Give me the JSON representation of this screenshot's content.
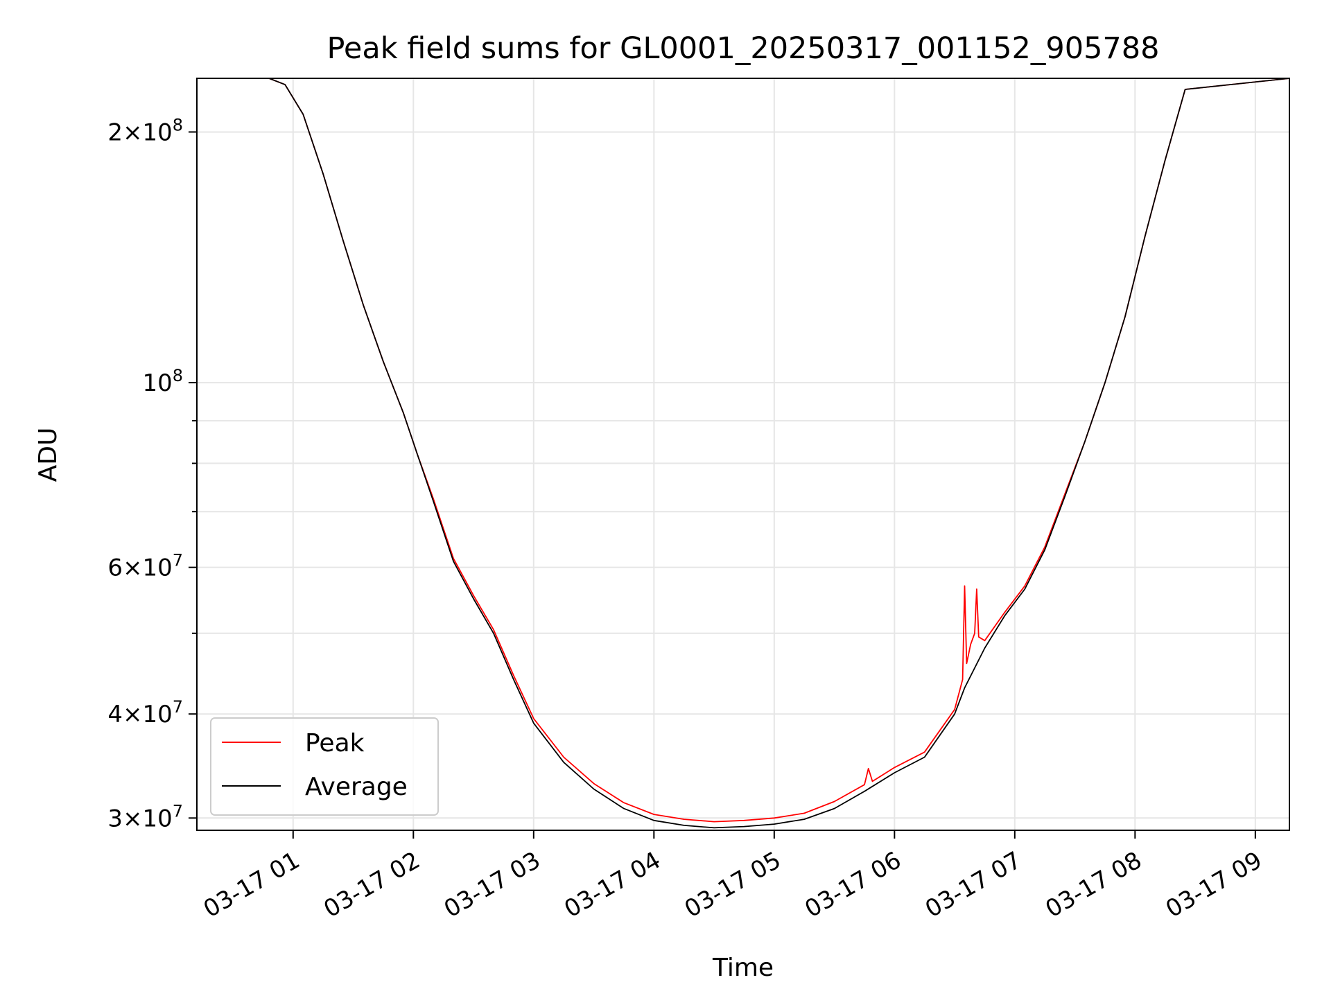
{
  "chart_data": {
    "type": "line",
    "title": "Peak field sums for GL0001_20250317_001152_905788",
    "xlabel": "Time",
    "ylabel": "ADU",
    "x_range": [
      "2025-03-17T00:12:00",
      "2025-03-17T09:17:00"
    ],
    "y_scale": "log",
    "ylim": [
      29000000,
      232000000
    ],
    "grid": true,
    "legend_position": "lower-left",
    "x_ticks": [
      {
        "time": "2025-03-17T01:00:00",
        "label": "03-17 01"
      },
      {
        "time": "2025-03-17T02:00:00",
        "label": "03-17 02"
      },
      {
        "time": "2025-03-17T03:00:00",
        "label": "03-17 03"
      },
      {
        "time": "2025-03-17T04:00:00",
        "label": "03-17 04"
      },
      {
        "time": "2025-03-17T05:00:00",
        "label": "03-17 05"
      },
      {
        "time": "2025-03-17T06:00:00",
        "label": "03-17 06"
      },
      {
        "time": "2025-03-17T07:00:00",
        "label": "03-17 07"
      },
      {
        "time": "2025-03-17T08:00:00",
        "label": "03-17 08"
      },
      {
        "time": "2025-03-17T09:00:00",
        "label": "03-17 09"
      }
    ],
    "y_ticks_major": [
      {
        "value": 30000000,
        "mantissa": "3",
        "exponent": "7"
      },
      {
        "value": 40000000,
        "mantissa": "4",
        "exponent": "7"
      },
      {
        "value": 60000000,
        "mantissa": "6",
        "exponent": "7"
      },
      {
        "value": 100000000,
        "mantissa": "",
        "exponent": "8"
      },
      {
        "value": 200000000,
        "mantissa": "2",
        "exponent": "8"
      }
    ],
    "y_ticks_minor": [
      50000000,
      70000000,
      80000000,
      90000000
    ],
    "series": [
      {
        "name": "Average",
        "color": "#000000",
        "x": [
          "2025-03-17T00:12:00",
          "2025-03-17T00:48:00",
          "2025-03-17T00:56:00",
          "2025-03-17T01:05:00",
          "2025-03-17T01:15:00",
          "2025-03-17T01:25:00",
          "2025-03-17T01:35:00",
          "2025-03-17T01:45:00",
          "2025-03-17T01:55:00",
          "2025-03-17T02:02:00",
          "2025-03-17T02:10:00",
          "2025-03-17T02:20:00",
          "2025-03-17T02:30:00",
          "2025-03-17T02:40:00",
          "2025-03-17T02:50:00",
          "2025-03-17T03:00:00",
          "2025-03-17T03:15:00",
          "2025-03-17T03:30:00",
          "2025-03-17T03:45:00",
          "2025-03-17T04:00:00",
          "2025-03-17T04:15:00",
          "2025-03-17T04:30:00",
          "2025-03-17T04:45:00",
          "2025-03-17T05:00:00",
          "2025-03-17T05:15:00",
          "2025-03-17T05:30:00",
          "2025-03-17T05:45:00",
          "2025-03-17T06:00:00",
          "2025-03-17T06:15:00",
          "2025-03-17T06:30:00",
          "2025-03-17T06:35:00",
          "2025-03-17T06:45:00",
          "2025-03-17T06:55:00",
          "2025-03-17T07:05:00",
          "2025-03-17T07:15:00",
          "2025-03-17T07:25:00",
          "2025-03-17T07:35:00",
          "2025-03-17T07:45:00",
          "2025-03-17T07:55:00",
          "2025-03-17T08:05:00",
          "2025-03-17T08:15:00",
          "2025-03-17T08:25:00",
          "2025-03-17T09:17:00"
        ],
        "y": [
          232000000,
          232000000,
          228000000,
          210000000,
          178000000,
          148000000,
          124000000,
          106000000,
          92000000,
          82000000,
          72000000,
          61000000,
          55000000,
          50000000,
          44000000,
          39000000,
          35000000,
          32500000,
          30800000,
          29800000,
          29400000,
          29200000,
          29300000,
          29500000,
          29900000,
          30800000,
          32300000,
          34000000,
          35500000,
          40000000,
          43000000,
          48000000,
          52500000,
          56500000,
          63000000,
          73000000,
          85000000,
          100000000,
          120000000,
          150000000,
          185000000,
          225000000,
          232000000
        ]
      },
      {
        "name": "Peak",
        "color": "#ff0000",
        "x": [
          "2025-03-17T00:12:00",
          "2025-03-17T00:48:00",
          "2025-03-17T00:56:00",
          "2025-03-17T01:05:00",
          "2025-03-17T01:15:00",
          "2025-03-17T01:25:00",
          "2025-03-17T01:35:00",
          "2025-03-17T01:45:00",
          "2025-03-17T01:55:00",
          "2025-03-17T02:02:00",
          "2025-03-17T02:10:00",
          "2025-03-17T02:20:00",
          "2025-03-17T02:30:00",
          "2025-03-17T02:40:00",
          "2025-03-17T02:50:00",
          "2025-03-17T03:00:00",
          "2025-03-17T03:15:00",
          "2025-03-17T03:30:00",
          "2025-03-17T03:45:00",
          "2025-03-17T04:00:00",
          "2025-03-17T04:15:00",
          "2025-03-17T04:30:00",
          "2025-03-17T04:45:00",
          "2025-03-17T05:00:00",
          "2025-03-17T05:15:00",
          "2025-03-17T05:30:00",
          "2025-03-17T05:45:00",
          "2025-03-17T05:47:00",
          "2025-03-17T05:49:00",
          "2025-03-17T06:00:00",
          "2025-03-17T06:15:00",
          "2025-03-17T06:30:00",
          "2025-03-17T06:34:00",
          "2025-03-17T06:35:00",
          "2025-03-17T06:36:00",
          "2025-03-17T06:38:00",
          "2025-03-17T06:40:00",
          "2025-03-17T06:41:00",
          "2025-03-17T06:42:00",
          "2025-03-17T06:45:00",
          "2025-03-17T06:55:00",
          "2025-03-17T07:05:00",
          "2025-03-17T07:15:00",
          "2025-03-17T07:25:00",
          "2025-03-17T07:35:00",
          "2025-03-17T07:45:00",
          "2025-03-17T07:55:00",
          "2025-03-17T08:05:00",
          "2025-03-17T08:15:00",
          "2025-03-17T08:25:00",
          "2025-03-17T09:17:00"
        ],
        "y": [
          232000000,
          232000000,
          228000000,
          210000000,
          178000000,
          148000000,
          124000000,
          106000000,
          92000000,
          82000000,
          72500000,
          61500000,
          55500000,
          50500000,
          44500000,
          39500000,
          35500000,
          33000000,
          31300000,
          30300000,
          29900000,
          29700000,
          29800000,
          30000000,
          30400000,
          31400000,
          32900000,
          34400000,
          33200000,
          34500000,
          36000000,
          40500000,
          44000000,
          57000000,
          46000000,
          48500000,
          50000000,
          56500000,
          49500000,
          49000000,
          53000000,
          57000000,
          63500000,
          73500000,
          85000000,
          100000000,
          120000000,
          150000000,
          185000000,
          225000000,
          232000000
        ]
      }
    ]
  }
}
